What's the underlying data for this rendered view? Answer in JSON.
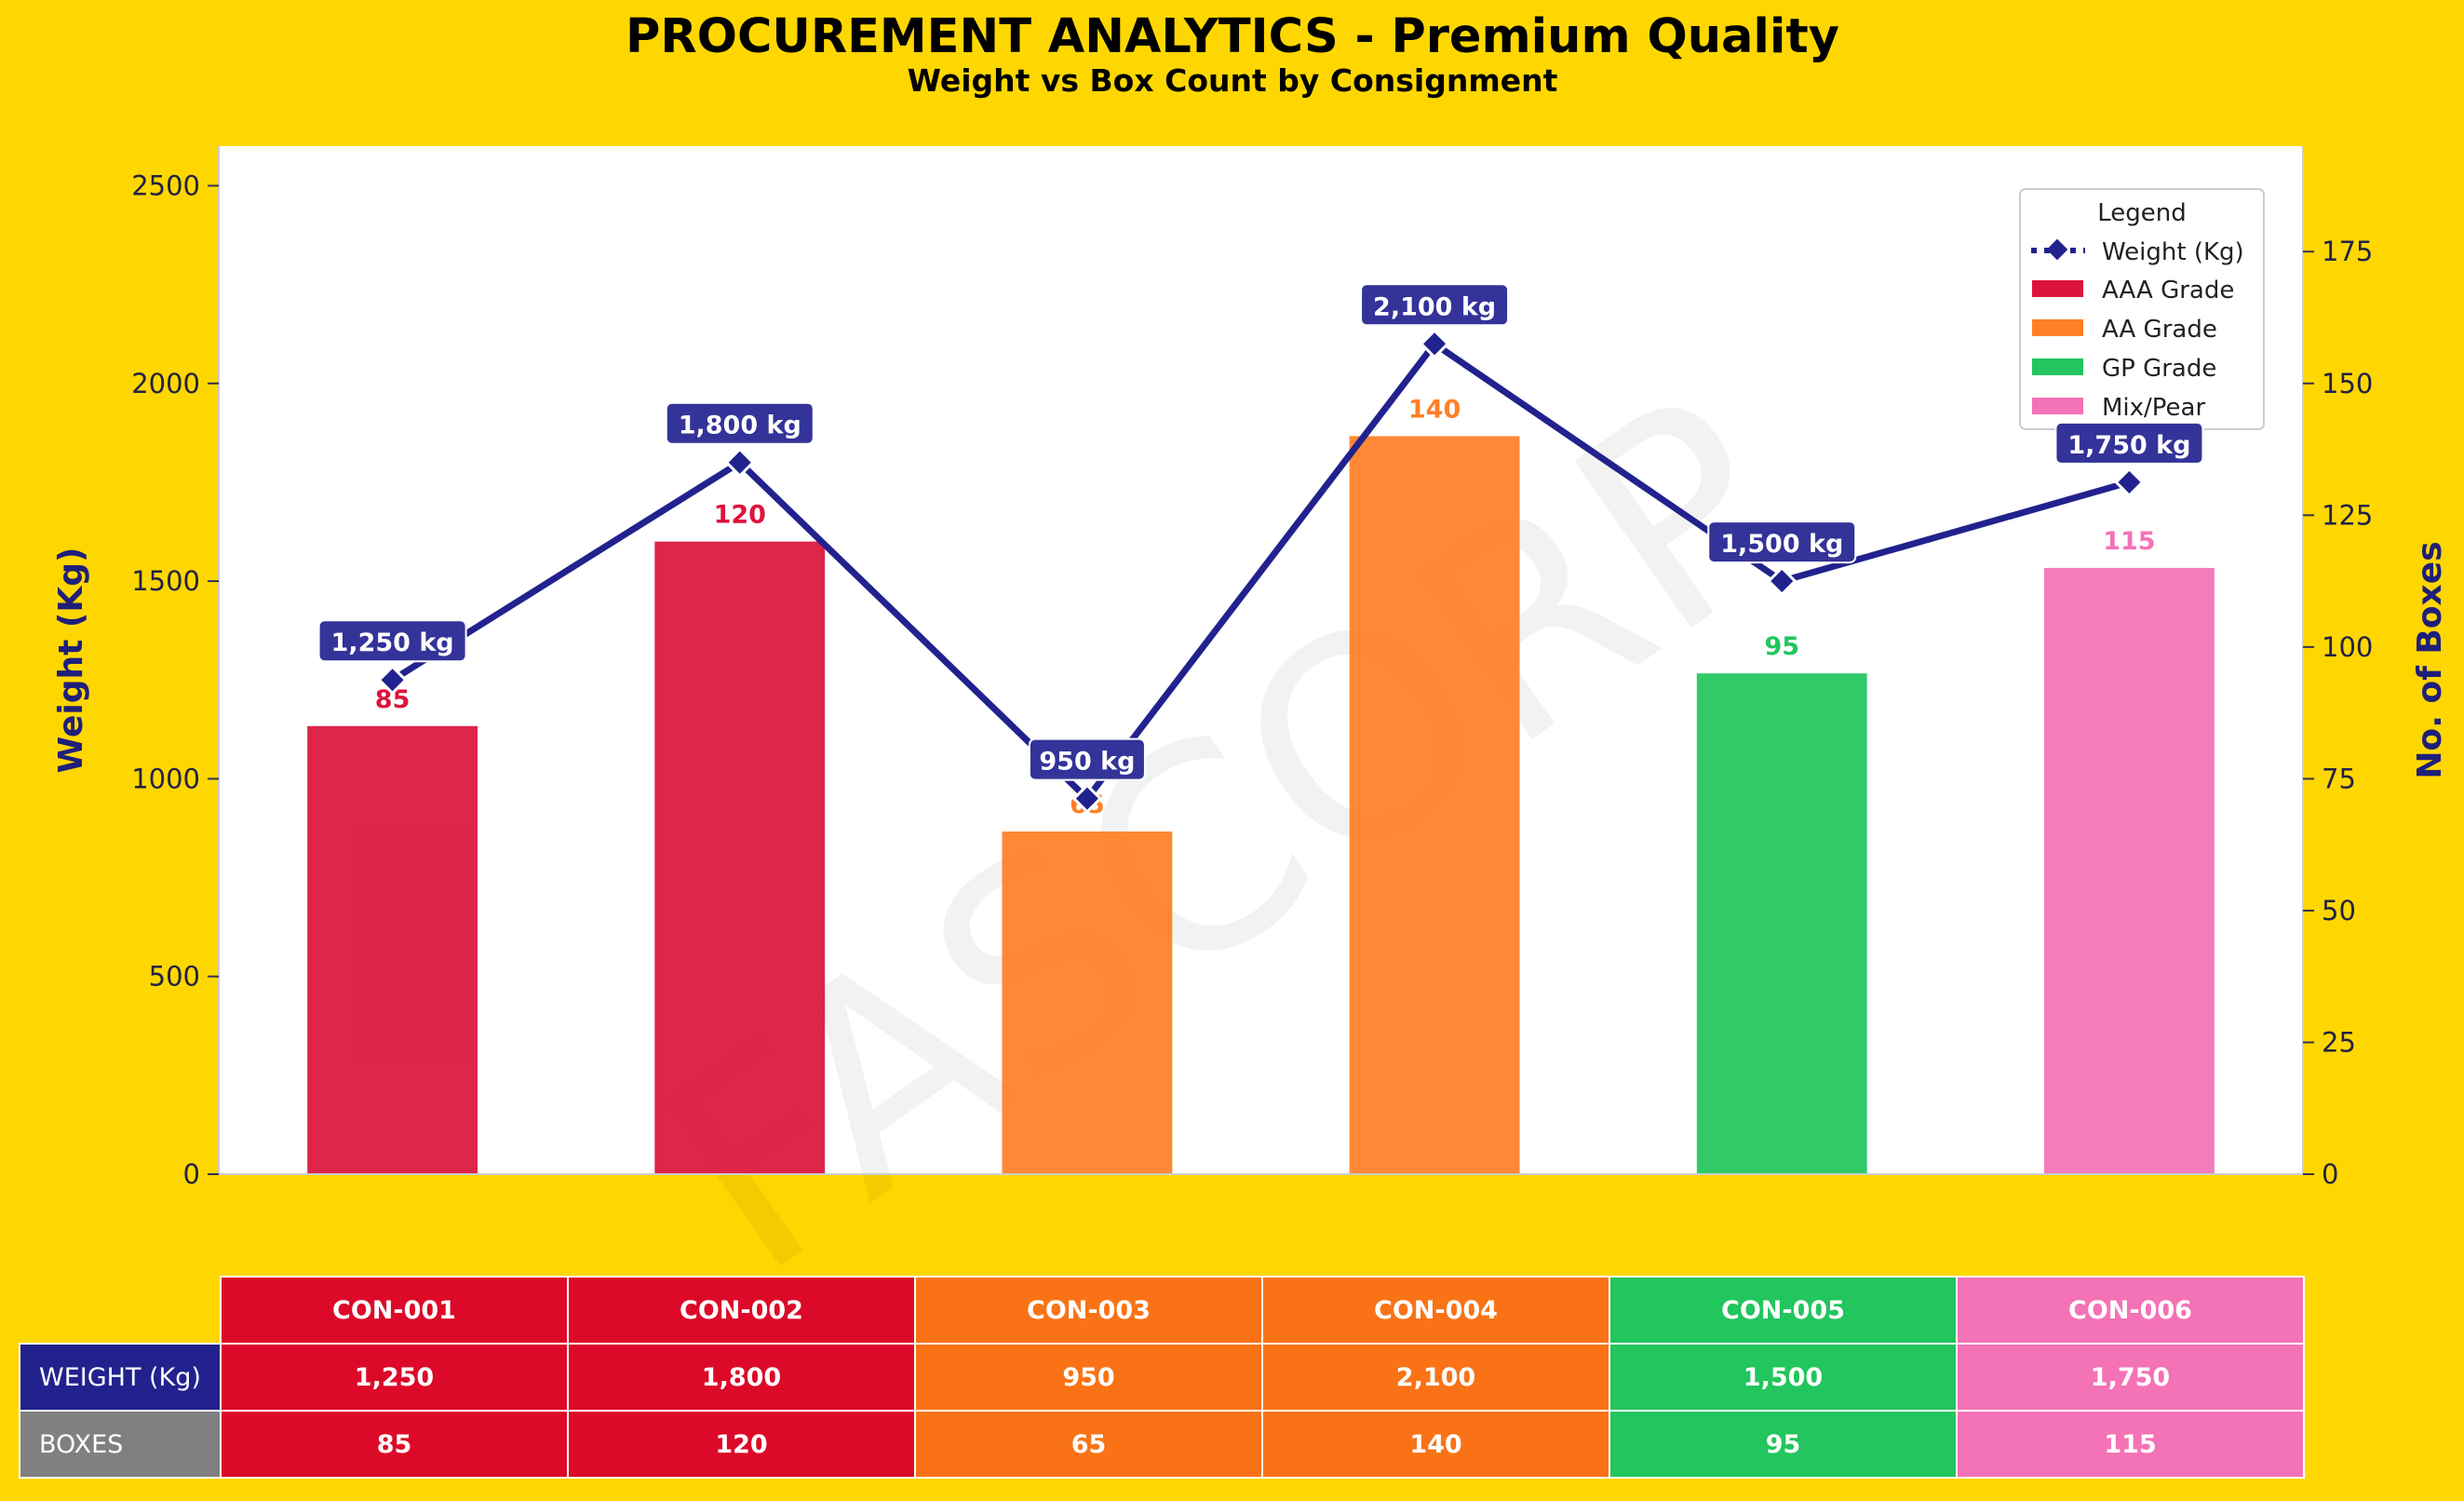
{
  "colors": {
    "background": "#FFD700",
    "plot_bg": "#FFFFFF",
    "line": "#22228E",
    "label_box": "#333399",
    "aaa": "#DC143C",
    "aa": "#FF7F27",
    "gp": "#22C55E",
    "mix": "#F472B6",
    "weight_row_label": "#22228E",
    "boxes_row_label": "#808080"
  },
  "watermark": "FASCORP",
  "chart_data": {
    "type": "bar",
    "title": "PROCUREMENT ANALYTICS - Premium Quality",
    "subtitle": "Weight vs Box Count by Consignment",
    "xlabel": "",
    "ylabel_left": "Weight (Kg)",
    "ylabel_right": "No. of Boxes",
    "ylim_left": [
      0,
      2600
    ],
    "ylim_right": [
      0,
      195
    ],
    "yticks_left": [
      0,
      500,
      1000,
      1500,
      2000,
      2500
    ],
    "yticks_right": [
      0,
      25,
      50,
      75,
      100,
      125,
      150,
      175
    ],
    "grid": false,
    "legend_placement": "top-right",
    "legend_title": "Legend",
    "legend": [
      {
        "label": "Weight (Kg)",
        "kind": "line",
        "color": "#22228E"
      },
      {
        "label": "AAA Grade",
        "kind": "patch",
        "color": "#DC143C"
      },
      {
        "label": "AA Grade",
        "kind": "patch",
        "color": "#FF7F27"
      },
      {
        "label": "GP Grade",
        "kind": "patch",
        "color": "#22C55E"
      },
      {
        "label": "Mix/Pear",
        "kind": "patch",
        "color": "#F472B6"
      }
    ],
    "categories": [
      "CON-001",
      "CON-002",
      "CON-003",
      "CON-004",
      "CON-005",
      "CON-006"
    ],
    "series": [
      {
        "name": "Weight (Kg)",
        "type": "line",
        "axis": "left",
        "values": [
          1250,
          1800,
          950,
          2100,
          1500,
          1750
        ],
        "labels": [
          "1,250 kg",
          "1,800 kg",
          "950 kg",
          "2,100 kg",
          "1,500 kg",
          "1,750 kg"
        ]
      },
      {
        "name": "No. of Boxes",
        "type": "bar",
        "axis": "right",
        "values": [
          85,
          120,
          65,
          140,
          95,
          115
        ],
        "labels": [
          "85",
          "120",
          "65",
          "140",
          "95",
          "115"
        ],
        "colors": [
          "#DC143C",
          "#DC143C",
          "#FF7F27",
          "#FF7F27",
          "#22C55E",
          "#F472B6"
        ]
      }
    ]
  },
  "table": {
    "headers": [
      "CON-001",
      "CON-002",
      "CON-003",
      "CON-004",
      "CON-005",
      "CON-006"
    ],
    "header_colors": [
      "#DC0A28",
      "#DC0A28",
      "#F97316",
      "#F97316",
      "#22C55E",
      "#F472B6"
    ],
    "rows": [
      {
        "label": "WEIGHT (Kg)",
        "label_color": "#22228E",
        "cells": [
          "1,250",
          "1,800",
          "950",
          "2,100",
          "1,500",
          "1,750"
        ]
      },
      {
        "label": "BOXES",
        "label_color": "#808080",
        "cells": [
          "85",
          "120",
          "65",
          "140",
          "95",
          "115"
        ]
      }
    ]
  }
}
